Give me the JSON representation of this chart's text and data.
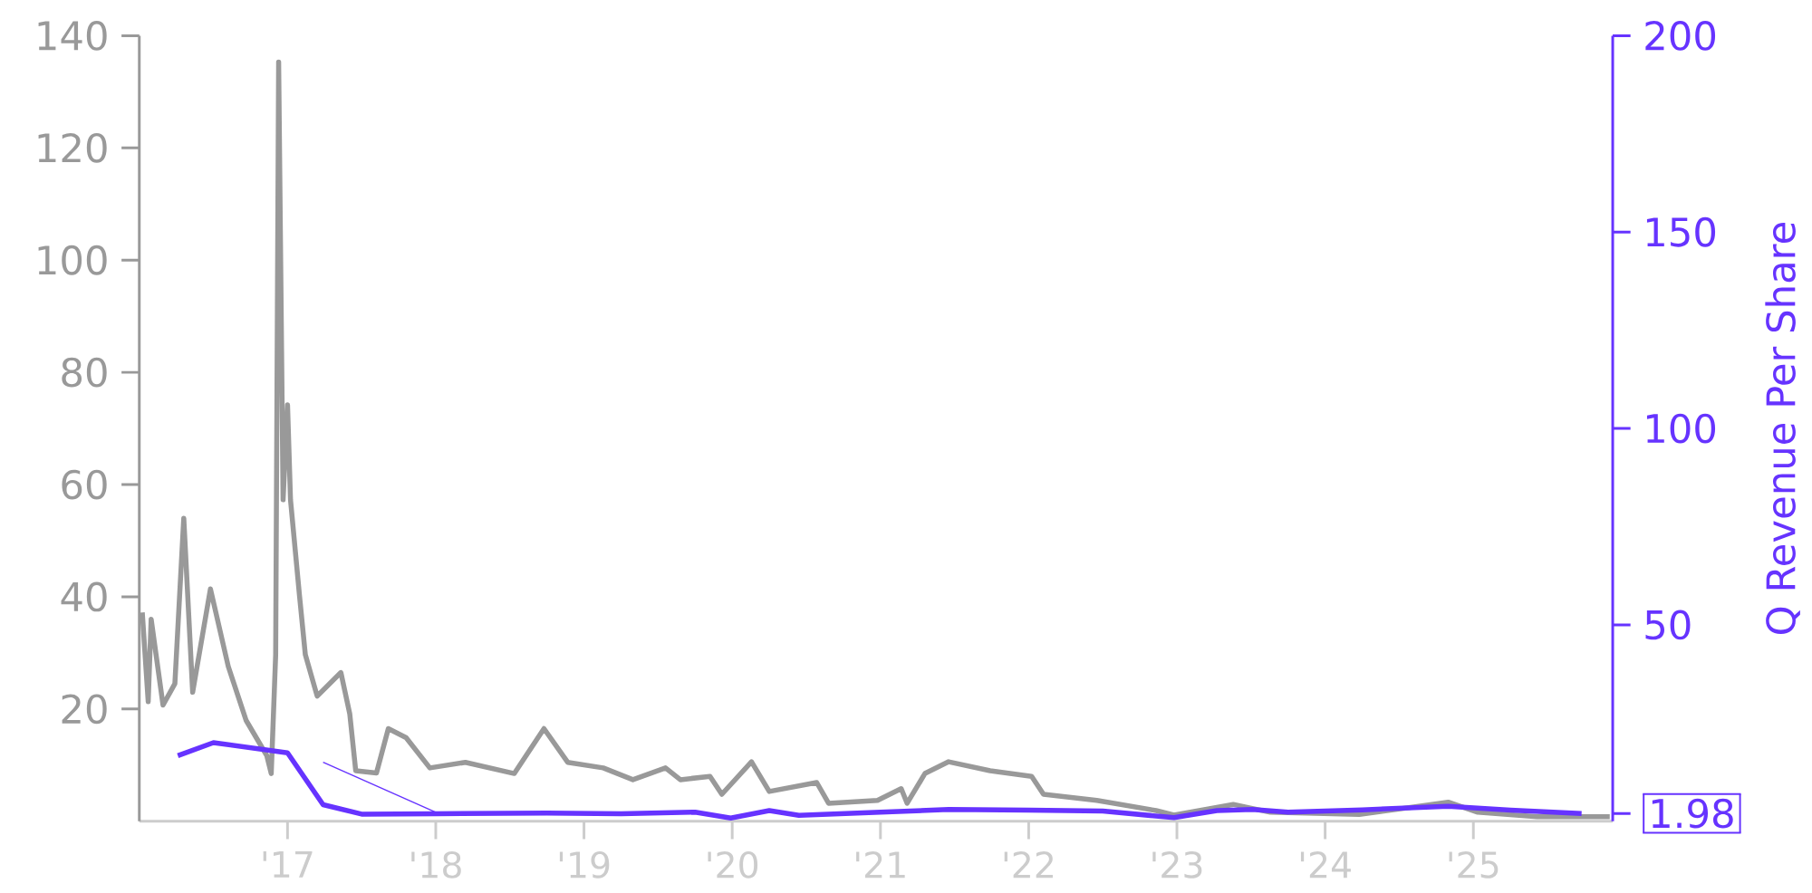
{
  "chart_data": {
    "type": "line",
    "y2label": "Q Revenue Per Share",
    "xlim": [
      2016.0,
      2025.94
    ],
    "ylim": [
      0,
      140
    ],
    "y2lim": [
      0,
      200
    ],
    "xticks": [
      {
        "value": 2017,
        "label": "'17"
      },
      {
        "value": 2018,
        "label": "'18"
      },
      {
        "value": 2019,
        "label": "'19"
      },
      {
        "value": 2020,
        "label": "'20"
      },
      {
        "value": 2021,
        "label": "'21"
      },
      {
        "value": 2022,
        "label": "'22"
      },
      {
        "value": 2023,
        "label": "'23"
      },
      {
        "value": 2024,
        "label": "'24"
      },
      {
        "value": 2025,
        "label": "'25"
      }
    ],
    "yticks": [
      20,
      40,
      60,
      80,
      100,
      120,
      140
    ],
    "y2ticks": [
      {
        "value": 1.98,
        "label": "1.98"
      },
      50,
      100,
      150,
      200
    ],
    "grid": false,
    "marker": "none",
    "line_style": "solid",
    "series": [
      {
        "color": "#999999",
        "x": [
          2016.02,
          2016.06,
          2016.08,
          2016.16,
          2016.24,
          2016.3,
          2016.36,
          2016.48,
          2016.6,
          2016.72,
          2016.86,
          2016.89,
          2016.92,
          2016.94,
          2016.97,
          2017.0,
          2017.02,
          2017.08,
          2017.12,
          2017.2,
          2017.36,
          2017.42,
          2017.46,
          2017.6,
          2017.68,
          2017.8,
          2017.96,
          2018.2,
          2018.53,
          2018.73,
          2018.89,
          2019.13,
          2019.33,
          2019.55,
          2019.65,
          2019.85,
          2019.93,
          2020.13,
          2020.25,
          2020.57,
          2020.65,
          2020.98,
          2021.14,
          2021.18,
          2021.3,
          2021.46,
          2021.74,
          2022.02,
          2022.1,
          2022.46,
          2022.86,
          2022.98,
          2023.38,
          2023.63,
          2024.23,
          2024.83,
          2025.03,
          2025.43,
          2025.92
        ],
        "values": [
          37.2,
          21.3,
          36,
          20.7,
          24.5,
          54,
          23,
          41.4,
          27.6,
          18,
          11.7,
          8.5,
          29.7,
          135.3,
          57.3,
          74.2,
          57.3,
          40.4,
          29.7,
          22.3,
          26.5,
          19.1,
          9,
          8.6,
          16.5,
          14.9,
          9.5,
          10.5,
          8.5,
          16.5,
          10.5,
          9.5,
          7.4,
          9.5,
          7.4,
          8,
          4.8,
          10.6,
          5.3,
          6.9,
          3.2,
          3.7,
          5.8,
          3.2,
          8.5,
          10.6,
          9,
          8,
          4.8,
          3.7,
          1.9,
          1.1,
          3.0,
          1.6,
          1.2,
          3.4,
          1.6,
          0.8,
          0.8
        ]
      },
      {
        "color": "#6633ff",
        "axis": "y2",
        "x": [
          2016.26,
          2016.5,
          2017.0,
          2017.24,
          2017.5,
          2018.0,
          2018.75,
          2019.25,
          2019.75,
          2019.99,
          2020.25,
          2020.45,
          2021.0,
          2021.46,
          2022.0,
          2022.5,
          2022.98,
          2023.27,
          2023.51,
          2023.75,
          2024.25,
          2024.83,
          2025.25,
          2025.73
        ],
        "values": [
          16.7,
          20,
          17.4,
          4.2,
          1.8,
          1.9,
          2.1,
          1.9,
          2.3,
          0.8,
          2.7,
          1.5,
          2.3,
          3.0,
          2.8,
          2.6,
          0.9,
          2.7,
          3.0,
          2.3,
          2.9,
          3.8,
          2.8,
          1.98
        ]
      },
      {
        "color": "#6633ff",
        "axis": "y2",
        "x": [
          2017.24,
          2018.0
        ],
        "values": [
          15,
          2.3
        ]
      }
    ]
  }
}
